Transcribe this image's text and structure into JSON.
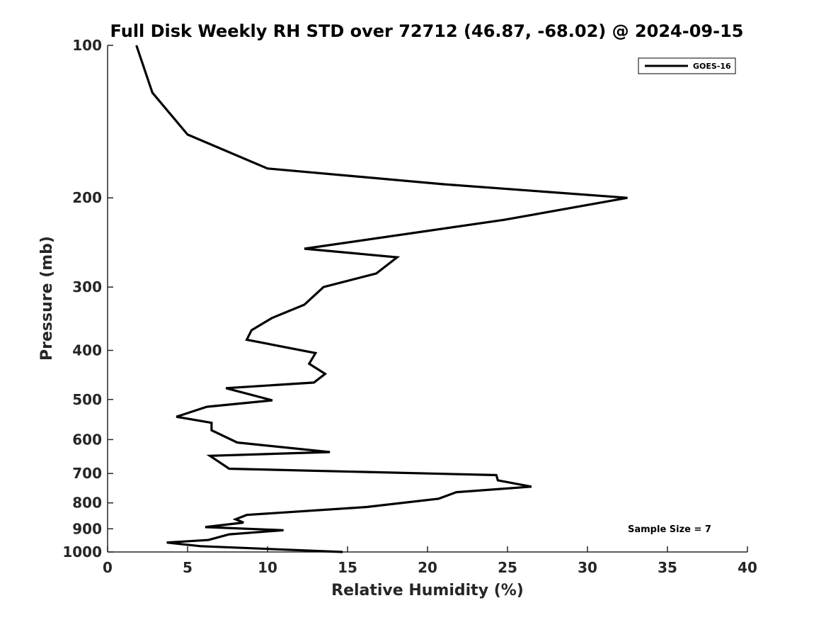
{
  "chart_data": {
    "type": "line",
    "title": "Full Disk Weekly RH STD over 72712 (46.87, -68.02) @ 2024-09-15",
    "xlabel": "Relative Humidity (%)",
    "ylabel": "Pressure (mb)",
    "xlim": [
      0,
      40
    ],
    "ylim": [
      100,
      1000
    ],
    "yscale": "log",
    "y_reversed": true,
    "xticks": [
      0,
      5,
      10,
      15,
      20,
      25,
      30,
      35,
      40
    ],
    "xtick_labels": [
      "0",
      "5",
      "10",
      "15",
      "20",
      "25",
      "30",
      "35",
      "40"
    ],
    "yticks": [
      100,
      200,
      300,
      400,
      500,
      600,
      700,
      800,
      900,
      1000
    ],
    "ytick_labels": [
      "100",
      "200",
      "300",
      "400",
      "500",
      "600",
      "700",
      "800",
      "900",
      "1000"
    ],
    "grid": false,
    "legend": {
      "position": "top-right",
      "entries": [
        "GOES-16"
      ]
    },
    "annotation": "Sample Size = 7",
    "series": [
      {
        "name": "GOES-16",
        "color": "#000000",
        "points": [
          [
            1.8,
            100
          ],
          [
            2.8,
            124
          ],
          [
            5.0,
            150
          ],
          [
            10.0,
            175
          ],
          [
            21.0,
            188
          ],
          [
            32.5,
            200
          ],
          [
            24.8,
            221
          ],
          [
            12.3,
            252
          ],
          [
            18.1,
            262
          ],
          [
            16.8,
            282
          ],
          [
            13.5,
            300
          ],
          [
            12.3,
            325
          ],
          [
            10.3,
            345
          ],
          [
            9.0,
            365
          ],
          [
            8.7,
            381
          ],
          [
            13.0,
            405
          ],
          [
            12.6,
            425
          ],
          [
            13.6,
            445
          ],
          [
            12.9,
            463
          ],
          [
            7.4,
            475
          ],
          [
            10.3,
            502
          ],
          [
            6.2,
            517
          ],
          [
            4.3,
            541
          ],
          [
            6.5,
            556
          ],
          [
            6.5,
            575
          ],
          [
            8.1,
            608
          ],
          [
            13.9,
            635
          ],
          [
            6.4,
            646
          ],
          [
            7.6,
            685
          ],
          [
            24.3,
            705
          ],
          [
            24.4,
            722
          ],
          [
            26.5,
            743
          ],
          [
            21.8,
            762
          ],
          [
            20.7,
            785
          ],
          [
            16.2,
            815
          ],
          [
            8.7,
            845
          ],
          [
            8.0,
            862
          ],
          [
            8.5,
            875
          ],
          [
            6.1,
            893
          ],
          [
            11.0,
            906
          ],
          [
            7.6,
            923
          ],
          [
            6.3,
            947
          ],
          [
            3.7,
            958
          ],
          [
            5.8,
            974
          ],
          [
            14.7,
            1000
          ]
        ]
      }
    ]
  }
}
